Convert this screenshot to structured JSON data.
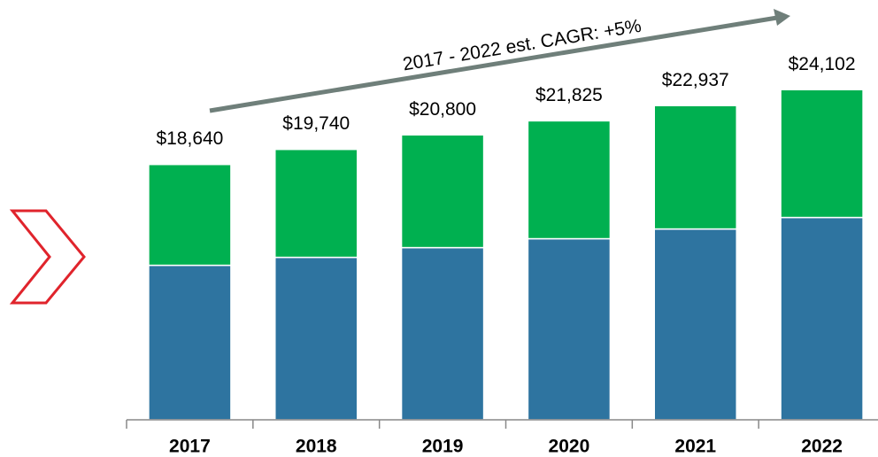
{
  "chart_data": {
    "type": "stacked-bar",
    "annotation": "2017 - 2022 est. CAGR: +5%",
    "categories": [
      "2017",
      "2018",
      "2019",
      "2020",
      "2021",
      "2022"
    ],
    "series": [
      {
        "color": "#2e74a0",
        "values": [
          11280,
          11860,
          12570,
          13220,
          13930,
          14770
        ]
      },
      {
        "color": "#00b050",
        "values": [
          7360,
          7880,
          8230,
          8605,
          9007,
          9332
        ]
      }
    ],
    "total_labels": [
      "$18,640",
      "$19,740",
      "$20,800",
      "$21,825",
      "$22,937",
      "$24,102"
    ],
    "ylim": [
      0,
      30000
    ]
  }
}
